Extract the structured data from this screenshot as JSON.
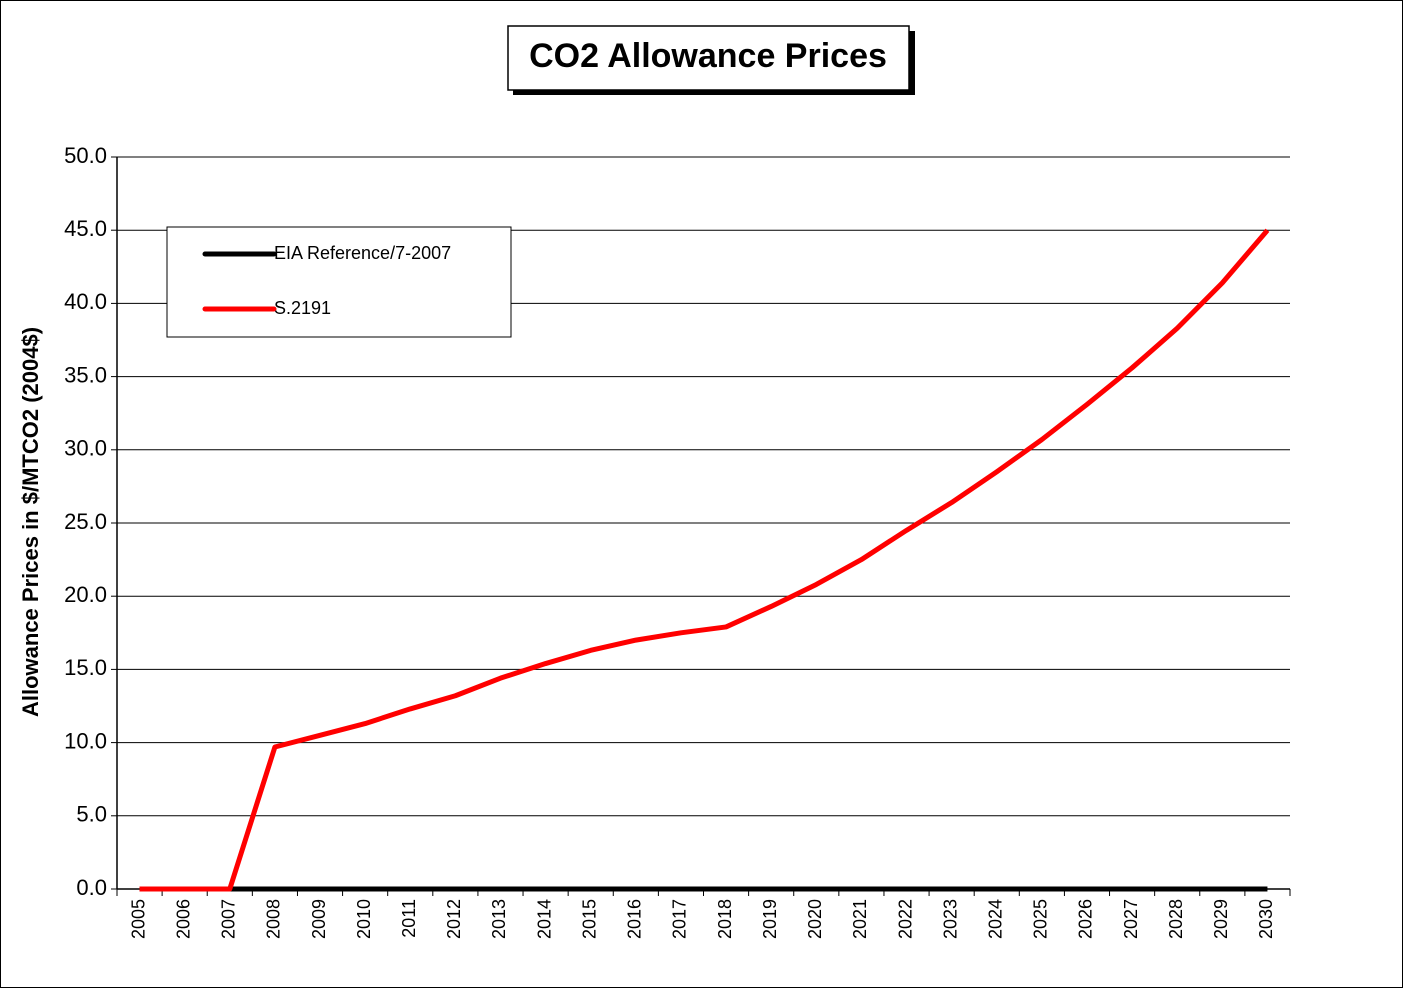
{
  "chart_data": {
    "type": "line",
    "title": "CO2 Allowance Prices",
    "y_label": "Allowance Prices in $/MTCO2 (2004$)",
    "categories": [
      "2005",
      "2006",
      "2007",
      "2008",
      "2009",
      "2010",
      "2011",
      "2012",
      "2013",
      "2014",
      "2015",
      "2016",
      "2017",
      "2018",
      "2019",
      "2020",
      "2021",
      "2022",
      "2023",
      "2024",
      "2025",
      "2026",
      "2027",
      "2028",
      "2029",
      "2030"
    ],
    "series": [
      {
        "name": "EIA Reference/7-2007",
        "color": "#000000",
        "values": [
          0,
          0,
          0,
          0,
          0,
          0,
          0,
          0,
          0,
          0,
          0,
          0,
          0,
          0,
          0,
          0,
          0,
          0,
          0,
          0,
          0,
          0,
          0,
          0,
          0,
          0
        ]
      },
      {
        "name": "S.2191",
        "color": "#ff0000",
        "values": [
          0,
          0,
          0,
          9.7,
          10.5,
          11.3,
          12.3,
          13.2,
          14.4,
          15.4,
          16.3,
          17.0,
          17.5,
          17.9,
          19.3,
          20.8,
          22.5,
          24.5,
          26.4,
          28.5,
          30.7,
          33.1,
          35.6,
          38.3,
          41.4,
          45.0
        ]
      }
    ],
    "ylim": [
      0,
      50
    ],
    "yticks": [
      {
        "value": 0,
        "label": "0.0"
      },
      {
        "value": 5,
        "label": "5.0"
      },
      {
        "value": 10,
        "label": "10.0"
      },
      {
        "value": 15,
        "label": "15.0"
      },
      {
        "value": 20,
        "label": "20.0"
      },
      {
        "value": 25,
        "label": "25.0"
      },
      {
        "value": 30,
        "label": "30.0"
      },
      {
        "value": 35,
        "label": "35.0"
      },
      {
        "value": 40,
        "label": "40.0"
      },
      {
        "value": 45,
        "label": "45.0"
      },
      {
        "value": 50,
        "label": "50.0"
      }
    ],
    "grid": true
  }
}
